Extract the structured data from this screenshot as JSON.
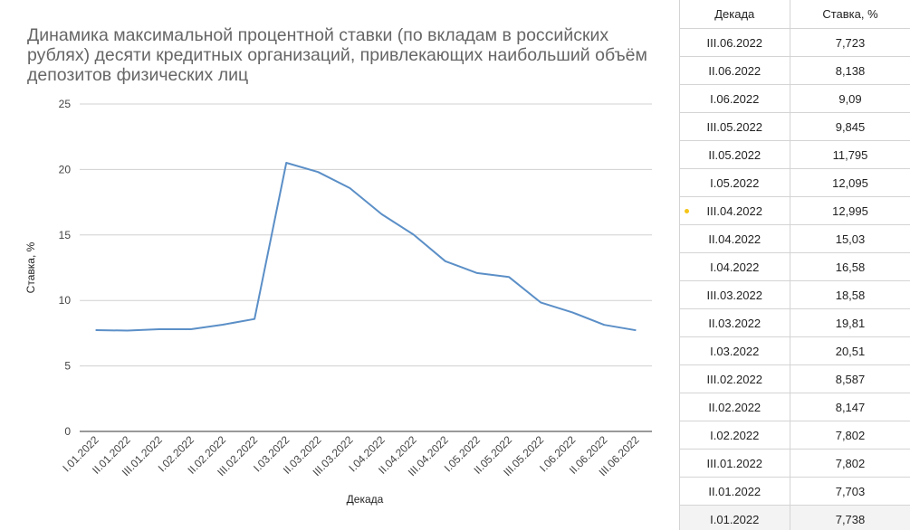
{
  "chart_data": {
    "type": "line",
    "title": "Динамика максимальной процентной ставки (по вкладам в российских рублях) десяти кредитных организаций, привлекающих наибольший объём депозитов физических лиц",
    "xlabel": "Декада",
    "ylabel": "Ставка, %",
    "ylim": [
      0,
      25
    ],
    "yticks": [
      0,
      5,
      10,
      15,
      20,
      25
    ],
    "grid": true,
    "categories": [
      "I.01.2022",
      "II.01.2022",
      "III.01.2022",
      "I.02.2022",
      "II.02.2022",
      "III.02.2022",
      "I.03.2022",
      "II.03.2022",
      "III.03.2022",
      "I.04.2022",
      "II.04.2022",
      "III.04.2022",
      "I.05.2022",
      "II.05.2022",
      "III.05.2022",
      "I.06.2022",
      "II.06.2022",
      "III.06.2022"
    ],
    "series": [
      {
        "color": "#5b8fc7",
        "values": [
          7.738,
          7.703,
          7.802,
          7.802,
          8.147,
          8.587,
          20.51,
          19.81,
          18.58,
          16.58,
          15.03,
          12.995,
          12.095,
          11.795,
          9.845,
          9.09,
          8.138,
          7.723
        ]
      }
    ]
  },
  "table": {
    "headers": [
      "Декада",
      "Ставка, %"
    ],
    "rows": [
      [
        "III.06.2022",
        "7,723"
      ],
      [
        "II.06.2022",
        "8,138"
      ],
      [
        "I.06.2022",
        "9,09"
      ],
      [
        "III.05.2022",
        "9,845"
      ],
      [
        "II.05.2022",
        "11,795"
      ],
      [
        "I.05.2022",
        "12,095"
      ],
      [
        "III.04.2022",
        "12,995"
      ],
      [
        "II.04.2022",
        "15,03"
      ],
      [
        "I.04.2022",
        "16,58"
      ],
      [
        "III.03.2022",
        "18,58"
      ],
      [
        "II.03.2022",
        "19,81"
      ],
      [
        "I.03.2022",
        "20,51"
      ],
      [
        "III.02.2022",
        "8,587"
      ],
      [
        "II.02.2022",
        "8,147"
      ],
      [
        "I.02.2022",
        "7,802"
      ],
      [
        "III.01.2022",
        "7,802"
      ],
      [
        "II.01.2022",
        "7,703"
      ],
      [
        "I.01.2022",
        "7,738"
      ]
    ],
    "marked_row": "III.04.2022",
    "marker_color": "#f5c518"
  }
}
